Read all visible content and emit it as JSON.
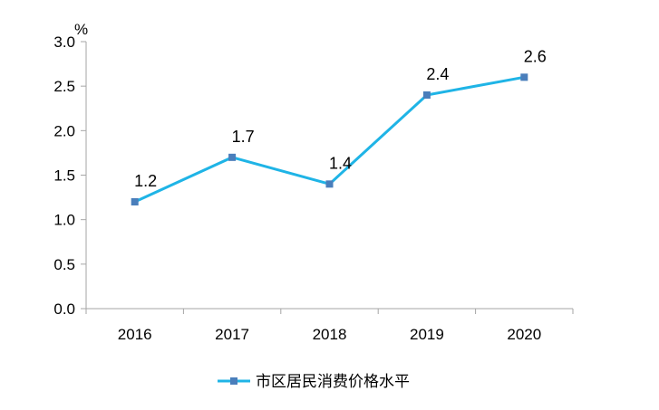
{
  "chart_data": {
    "type": "line",
    "categories": [
      "2016",
      "2017",
      "2018",
      "2019",
      "2020"
    ],
    "series": [
      {
        "name": "市区居民消费价格水平",
        "values": [
          1.2,
          1.7,
          1.4,
          2.4,
          2.6
        ]
      }
    ],
    "y_unit": "%",
    "ylim": [
      0,
      3.0
    ],
    "y_ticks": [
      "0.0",
      "0.5",
      "1.0",
      "1.5",
      "2.0",
      "2.5",
      "3.0"
    ],
    "grid": false,
    "legend_position": "bottom-center",
    "line_color": "#1FB4E6",
    "marker_color": "#4A7EBB",
    "axis_color": "#A6A6A6"
  }
}
